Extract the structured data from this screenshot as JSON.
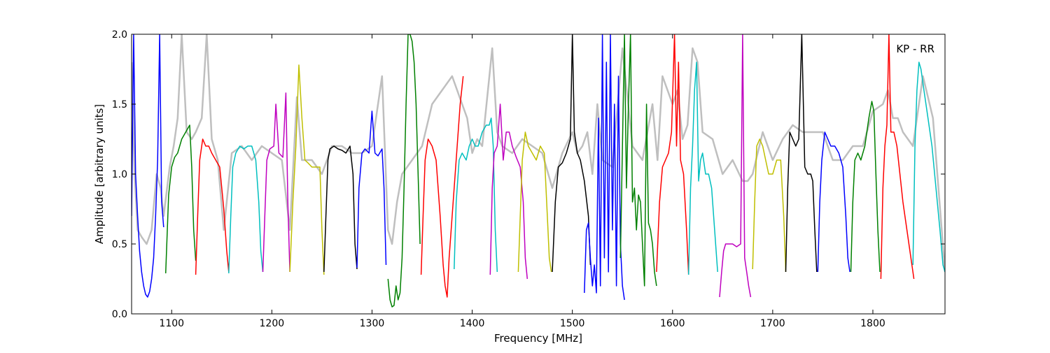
{
  "chart_data": {
    "type": "line",
    "title": "",
    "annotation": "KP - RR",
    "xlabel": "Frequency [MHz]",
    "ylabel": "Amplitude [arbitrary units]",
    "xlim": [
      1060,
      1872
    ],
    "ylim": [
      0.0,
      2.0
    ],
    "xticks": [
      1100,
      1200,
      1300,
      1400,
      1500,
      1600,
      1700,
      1800
    ],
    "yticks": [
      0.0,
      0.5,
      1.0,
      1.5,
      2.0
    ],
    "xtick_labels": [
      "1100",
      "1200",
      "1300",
      "1400",
      "1500",
      "1600",
      "1700",
      "1800"
    ],
    "ytick_labels": [
      "0.0",
      "0.5",
      "1.0",
      "1.5",
      "2.0"
    ],
    "grid": false,
    "legend": "none",
    "reference": {
      "color": "#bfbfbf",
      "note": "gray underlay, raw bandpass",
      "x": [
        1060,
        1063,
        1066,
        1070,
        1075,
        1080,
        1085,
        1089,
        1092,
        1098,
        1102,
        1106,
        1110,
        1115,
        1120,
        1124,
        1130,
        1135,
        1140,
        1146,
        1152,
        1160,
        1170,
        1180,
        1190,
        1200,
        1210,
        1218,
        1225,
        1230,
        1240,
        1250,
        1260,
        1270,
        1280,
        1290,
        1300,
        1310,
        1316,
        1320,
        1325,
        1330,
        1340,
        1350,
        1360,
        1370,
        1380,
        1390,
        1395,
        1400,
        1405,
        1410,
        1420,
        1425,
        1430,
        1440,
        1450,
        1460,
        1470,
        1480,
        1490,
        1500,
        1505,
        1510,
        1515,
        1520,
        1525,
        1530,
        1540,
        1550,
        1560,
        1570,
        1580,
        1585,
        1590,
        1600,
        1605,
        1610,
        1615,
        1620,
        1625,
        1630,
        1640,
        1650,
        1660,
        1670,
        1675,
        1680,
        1690,
        1700,
        1710,
        1720,
        1730,
        1740,
        1750,
        1760,
        1770,
        1780,
        1790,
        1800,
        1810,
        1815,
        1820,
        1825,
        1830,
        1840,
        1850,
        1860,
        1872
      ],
      "y": [
        1.8,
        1.0,
        0.6,
        0.55,
        0.5,
        0.6,
        1.0,
        0.9,
        0.7,
        1.05,
        1.2,
        1.4,
        2.0,
        1.3,
        1.25,
        1.3,
        1.4,
        2.0,
        1.25,
        1.1,
        0.6,
        1.15,
        1.2,
        1.1,
        1.2,
        1.15,
        1.1,
        0.6,
        1.55,
        1.1,
        1.1,
        1.0,
        1.2,
        1.2,
        1.15,
        1.15,
        1.2,
        1.7,
        0.6,
        0.5,
        0.8,
        1.0,
        1.1,
        1.2,
        1.5,
        1.6,
        1.7,
        1.5,
        1.4,
        1.15,
        1.25,
        1.2,
        1.9,
        1.3,
        1.2,
        1.15,
        1.25,
        1.2,
        1.15,
        0.9,
        1.15,
        1.3,
        1.15,
        1.2,
        1.3,
        1.0,
        1.5,
        1.1,
        1.05,
        1.9,
        1.2,
        1.1,
        1.5,
        1.1,
        1.7,
        1.5,
        1.6,
        1.25,
        1.35,
        1.9,
        1.8,
        1.3,
        1.25,
        1.0,
        1.1,
        0.95,
        0.95,
        1.0,
        1.3,
        1.1,
        1.25,
        1.35,
        1.3,
        1.3,
        1.3,
        1.1,
        1.1,
        1.2,
        1.2,
        1.45,
        1.5,
        1.6,
        1.4,
        1.4,
        1.3,
        1.2,
        1.7,
        1.4,
        0.3
      ]
    },
    "series": [
      {
        "color": "#0000ff",
        "x": [
          1060,
          1062,
          1064,
          1066,
          1068,
          1070,
          1072,
          1074,
          1076,
          1078,
          1080,
          1082,
          1084,
          1086,
          1088,
          1090,
          1092
        ],
        "y": [
          0.7,
          2.0,
          1.0,
          0.7,
          0.45,
          0.3,
          0.2,
          0.14,
          0.12,
          0.16,
          0.25,
          0.4,
          0.7,
          1.1,
          2.0,
          0.8,
          0.62
        ]
      },
      {
        "color": "#008000",
        "x": [
          1094,
          1097,
          1100,
          1103,
          1106,
          1110,
          1114,
          1118,
          1120,
          1122,
          1124
        ],
        "y": [
          0.29,
          0.85,
          1.05,
          1.12,
          1.15,
          1.25,
          1.3,
          1.35,
          1.05,
          0.6,
          0.38
        ]
      },
      {
        "color": "#ff0000",
        "x": [
          1124,
          1126,
          1128,
          1131,
          1134,
          1137,
          1140,
          1144,
          1148,
          1152,
          1155,
          1157
        ],
        "y": [
          0.28,
          0.7,
          1.1,
          1.25,
          1.2,
          1.2,
          1.15,
          1.1,
          1.05,
          0.75,
          0.45,
          0.3
        ]
      },
      {
        "color": "#00bfbf",
        "x": [
          1157,
          1159,
          1161,
          1164,
          1168,
          1172,
          1176,
          1180,
          1184,
          1187,
          1189,
          1191
        ],
        "y": [
          0.29,
          0.7,
          1.05,
          1.15,
          1.2,
          1.18,
          1.2,
          1.2,
          1.1,
          0.8,
          0.45,
          0.3
        ]
      },
      {
        "color": "#bf00bf",
        "x": [
          1191,
          1193,
          1195,
          1198,
          1202,
          1204,
          1207,
          1211,
          1214,
          1216,
          1218
        ],
        "y": [
          0.3,
          0.7,
          1.1,
          1.18,
          1.2,
          1.5,
          1.15,
          1.12,
          1.58,
          0.8,
          0.3
        ]
      },
      {
        "color": "#bfbf00",
        "x": [
          1218,
          1221,
          1224,
          1227,
          1230,
          1233,
          1236,
          1240,
          1244,
          1248,
          1250,
          1252
        ],
        "y": [
          0.3,
          0.8,
          1.2,
          1.78,
          1.4,
          1.1,
          1.08,
          1.05,
          1.05,
          1.05,
          0.6,
          0.28
        ]
      },
      {
        "color": "#000000",
        "x": [
          1252,
          1254,
          1256,
          1258,
          1262,
          1266,
          1270,
          1274,
          1278,
          1281,
          1283,
          1285
        ],
        "y": [
          0.3,
          0.7,
          1.1,
          1.18,
          1.2,
          1.18,
          1.17,
          1.15,
          1.2,
          1.0,
          0.5,
          0.32
        ]
      },
      {
        "color": "#0000ff",
        "x": [
          1285,
          1287,
          1290,
          1293,
          1297,
          1300,
          1303,
          1306,
          1310,
          1312,
          1314
        ],
        "y": [
          0.33,
          0.9,
          1.15,
          1.18,
          1.15,
          1.45,
          1.15,
          1.13,
          1.18,
          0.9,
          0.35
        ]
      },
      {
        "color": "#008000",
        "x": [
          1316,
          1318,
          1320,
          1322,
          1324,
          1326,
          1328,
          1330,
          1332,
          1334,
          1336,
          1338,
          1340,
          1342,
          1344,
          1346,
          1348
        ],
        "y": [
          0.25,
          0.1,
          0.05,
          0.06,
          0.2,
          0.1,
          0.15,
          0.4,
          0.9,
          1.5,
          2.0,
          2.0,
          1.95,
          1.8,
          1.5,
          1.0,
          0.5
        ]
      },
      {
        "color": "#ff0000",
        "x": [
          1349,
          1351,
          1353,
          1356,
          1360,
          1364,
          1368,
          1371,
          1373,
          1375,
          1377,
          1379,
          1382,
          1385,
          1388,
          1391
        ],
        "y": [
          0.28,
          0.7,
          1.1,
          1.25,
          1.2,
          1.1,
          0.7,
          0.35,
          0.2,
          0.12,
          0.4,
          0.6,
          0.9,
          1.2,
          1.5,
          1.7
        ]
      },
      {
        "color": "#00bfbf",
        "x": [
          1382,
          1384,
          1387,
          1390,
          1394,
          1397,
          1400,
          1403,
          1406,
          1410,
          1414,
          1417,
          1419,
          1421,
          1423,
          1425
        ],
        "y": [
          0.32,
          0.8,
          1.1,
          1.15,
          1.1,
          1.2,
          1.25,
          1.2,
          1.2,
          1.3,
          1.35,
          1.35,
          1.4,
          1.2,
          0.6,
          0.3
        ]
      },
      {
        "color": "#bf00bf",
        "x": [
          1418,
          1420,
          1422,
          1425,
          1428,
          1431,
          1434,
          1437,
          1440,
          1444,
          1448,
          1451,
          1453,
          1455
        ],
        "y": [
          0.28,
          0.9,
          1.15,
          1.2,
          1.5,
          1.1,
          1.3,
          1.3,
          1.2,
          1.12,
          1.05,
          0.8,
          0.4,
          0.25
        ]
      },
      {
        "color": "#bfbf00",
        "x": [
          1446,
          1448,
          1450,
          1453,
          1456,
          1460,
          1464,
          1468,
          1472,
          1475,
          1477,
          1479
        ],
        "y": [
          0.3,
          0.7,
          1.1,
          1.3,
          1.2,
          1.15,
          1.1,
          1.2,
          1.15,
          0.7,
          0.4,
          0.3
        ]
      },
      {
        "color": "#000000",
        "x": [
          1480,
          1483,
          1486,
          1490,
          1494,
          1498,
          1500,
          1502,
          1505,
          1508,
          1512,
          1516,
          1518
        ],
        "y": [
          0.3,
          0.8,
          1.05,
          1.08,
          1.15,
          1.25,
          2.0,
          1.3,
          1.15,
          1.1,
          0.95,
          0.7,
          0.35
        ]
      },
      {
        "color": "#0000ff",
        "x": [
          1512,
          1514,
          1516,
          1518,
          1520,
          1522,
          1524,
          1526,
          1528,
          1530,
          1532,
          1534,
          1536,
          1538,
          1540,
          1542,
          1544,
          1546,
          1548,
          1550,
          1552
        ],
        "y": [
          0.15,
          0.6,
          0.65,
          0.4,
          0.2,
          0.35,
          0.15,
          1.4,
          0.2,
          2.0,
          0.4,
          1.8,
          0.3,
          2.0,
          0.6,
          1.5,
          0.2,
          1.7,
          0.5,
          0.2,
          0.1
        ]
      },
      {
        "color": "#008000",
        "x": [
          1548,
          1550,
          1552,
          1554,
          1556,
          1558,
          1560,
          1562,
          1564,
          1566,
          1568,
          1570,
          1572,
          1574,
          1576,
          1578,
          1580,
          1582,
          1584
        ],
        "y": [
          0.4,
          1.2,
          2.0,
          0.9,
          1.5,
          2.0,
          0.8,
          0.9,
          0.6,
          0.85,
          0.8,
          0.5,
          0.2,
          1.5,
          0.65,
          0.6,
          0.5,
          0.3,
          0.2
        ]
      },
      {
        "color": "#ff0000",
        "x": [
          1584,
          1587,
          1590,
          1593,
          1596,
          1599,
          1602,
          1604,
          1606,
          1608,
          1611,
          1614,
          1616
        ],
        "y": [
          0.3,
          0.8,
          1.05,
          1.1,
          1.15,
          1.3,
          2.0,
          1.2,
          1.8,
          1.1,
          1.0,
          0.6,
          0.28
        ]
      },
      {
        "color": "#00bfbf",
        "x": [
          1616,
          1618,
          1620,
          1622,
          1624,
          1626,
          1628,
          1630,
          1633,
          1636,
          1639,
          1642,
          1645
        ],
        "y": [
          0.28,
          0.9,
          1.2,
          1.6,
          1.8,
          0.95,
          1.1,
          1.15,
          1.0,
          1.0,
          0.9,
          0.6,
          0.3
        ]
      },
      {
        "color": "#bf00bf",
        "x": [
          1647,
          1649,
          1651,
          1653,
          1656,
          1660,
          1664,
          1668,
          1670,
          1672,
          1674,
          1676,
          1678
        ],
        "y": [
          0.12,
          0.3,
          0.45,
          0.5,
          0.5,
          0.5,
          0.48,
          0.5,
          2.0,
          0.4,
          0.3,
          0.2,
          0.12
        ]
      },
      {
        "color": "#bfbf00",
        "x": [
          1680,
          1682,
          1684,
          1687,
          1690,
          1693,
          1696,
          1700,
          1704,
          1708,
          1711,
          1713
        ],
        "y": [
          0.32,
          0.8,
          1.2,
          1.25,
          1.2,
          1.1,
          1.0,
          1.0,
          1.1,
          1.1,
          0.7,
          0.3
        ]
      },
      {
        "color": "#000000",
        "x": [
          1713,
          1715,
          1717,
          1720,
          1723,
          1726,
          1729,
          1732,
          1735,
          1738,
          1740,
          1742,
          1744
        ],
        "y": [
          0.3,
          0.9,
          1.3,
          1.25,
          1.2,
          1.25,
          2.0,
          1.05,
          1.0,
          1.0,
          0.95,
          0.6,
          0.3
        ]
      },
      {
        "color": "#0000ff",
        "x": [
          1745,
          1747,
          1749,
          1752,
          1755,
          1758,
          1762,
          1766,
          1770,
          1773,
          1775,
          1777
        ],
        "y": [
          0.3,
          0.8,
          1.1,
          1.3,
          1.25,
          1.2,
          1.2,
          1.15,
          1.05,
          0.7,
          0.4,
          0.3
        ]
      },
      {
        "color": "#008000",
        "x": [
          1778,
          1780,
          1782,
          1785,
          1788,
          1792,
          1796,
          1799,
          1801,
          1803,
          1805,
          1807
        ],
        "y": [
          0.3,
          0.8,
          1.1,
          1.15,
          1.1,
          1.2,
          1.4,
          1.52,
          1.45,
          1.0,
          0.6,
          0.3
        ]
      },
      {
        "color": "#ff0000",
        "x": [
          1808,
          1810,
          1812,
          1814,
          1816,
          1818,
          1821,
          1824,
          1827,
          1830,
          1834,
          1838,
          1841
        ],
        "y": [
          0.25,
          0.9,
          1.2,
          1.35,
          2.0,
          1.3,
          1.3,
          1.2,
          1.0,
          0.8,
          0.6,
          0.4,
          0.25
        ]
      },
      {
        "color": "#00bfbf",
        "x": [
          1840,
          1842,
          1844,
          1846,
          1848,
          1851,
          1855,
          1859,
          1863,
          1867,
          1870,
          1872
        ],
        "y": [
          0.35,
          1.2,
          1.6,
          1.8,
          1.75,
          1.6,
          1.4,
          1.2,
          0.9,
          0.6,
          0.35,
          0.3
        ]
      }
    ]
  }
}
